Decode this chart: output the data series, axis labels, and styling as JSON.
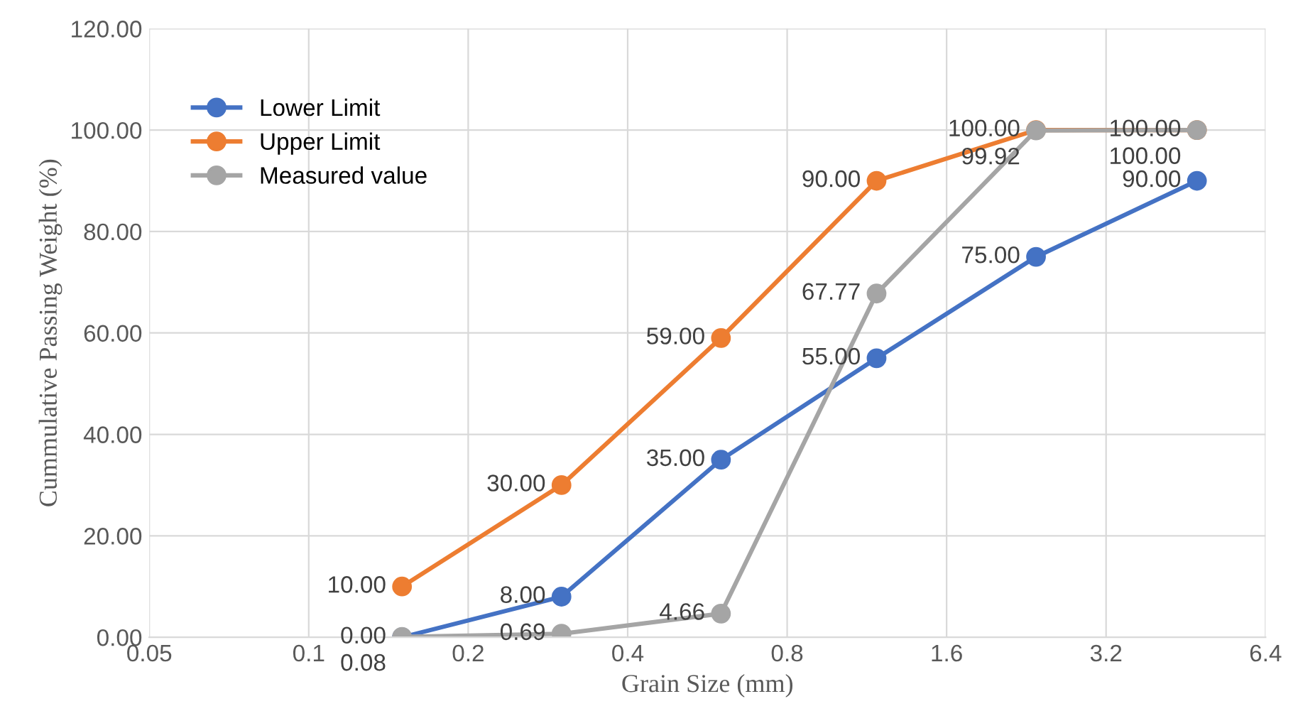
{
  "chart_data": {
    "type": "line",
    "xlabel": "Grain Size (mm)",
    "ylabel": "Cummulative Passing Weight (%)",
    "x": [
      0.15,
      0.3,
      0.6,
      1.18,
      2.36,
      4.75
    ],
    "series": [
      {
        "name": "Lower Limit",
        "color": "#4472c4",
        "values": [
          0.0,
          8.0,
          35.0,
          55.0,
          75.0,
          90.0
        ],
        "value_labels": [
          "0.00",
          "8.00",
          "35.00",
          "55.00",
          "75.00",
          "90.00"
        ]
      },
      {
        "name": "Upper Limit",
        "color": "#ed7d31",
        "values": [
          10.0,
          30.0,
          59.0,
          90.0,
          100.0,
          100.0
        ],
        "value_labels": [
          "10.00",
          "30.00",
          "59.00",
          "90.00",
          "100.00",
          "100.00"
        ]
      },
      {
        "name": "Measured value",
        "color": "#a5a5a5",
        "values": [
          0.08,
          0.69,
          4.66,
          67.77,
          99.92,
          100.0
        ],
        "value_labels": [
          "0.08",
          "0.69",
          "4.66",
          "67.77",
          "99.92",
          "100.00"
        ]
      }
    ],
    "log": "x",
    "xlim": [
      0.05,
      6.4
    ],
    "xticks": [
      0.05,
      0.1,
      0.2,
      0.4,
      0.8,
      1.6,
      3.2,
      6.4
    ],
    "ylim": [
      0,
      120
    ],
    "yticks": [
      {
        "value": 0,
        "label": "0.00"
      },
      {
        "value": 20,
        "label": "20.00"
      },
      {
        "value": 40,
        "label": "40.00"
      },
      {
        "value": 60,
        "label": "60.00"
      },
      {
        "value": 80,
        "label": "80.00"
      },
      {
        "value": 100,
        "label": "100.00"
      },
      {
        "value": 120,
        "label": "120.00"
      }
    ],
    "grid": true,
    "legend": "top left",
    "marker": "circle",
    "line_style": "solid"
  }
}
